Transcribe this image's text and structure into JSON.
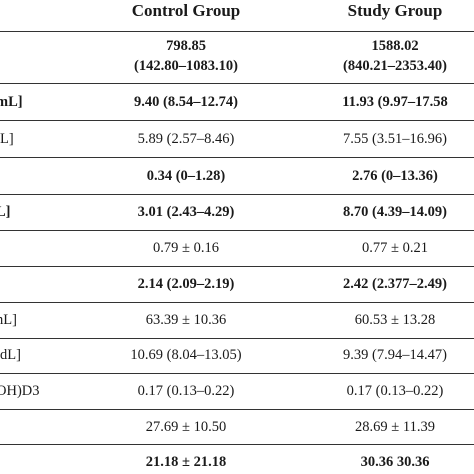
{
  "table": {
    "columns": [
      "Control Group",
      "Study Group"
    ],
    "rows": [
      {
        "label": "",
        "control": "798.85\n(142.80–1083.10)",
        "study": "1588.02\n(840.21–2353.40)",
        "bold": true
      },
      {
        "label": "mL]",
        "control": "9.40 (8.54–12.74)",
        "study": "11.93 (9.97–17.58",
        "bold": true
      },
      {
        "label": "/L]",
        "control": "5.89 (2.57–8.46)",
        "study": "7.55 (3.51–16.96)",
        "bold": false
      },
      {
        "label": "]",
        "control": "0.34 (0–1.28)",
        "study": "2.76 (0–13.36)",
        "bold": true
      },
      {
        "label": "L]",
        "control": "3.01 (2.43–4.29)",
        "study": "8.70 (4.39–14.09)",
        "bold": true
      },
      {
        "label": "",
        "control": "0.79 ± 0.16",
        "study": "0.77 ± 0.21",
        "bold": false
      },
      {
        "label": "",
        "control": "2.14 (2.09–2.19)",
        "study": "2.42 (2.377–2.49)",
        "bold": true
      },
      {
        "label": "nL]",
        "control": "63.39 ± 10.36",
        "study": "60.53 ± 13.28",
        "bold": false
      },
      {
        "label": "/dL]",
        "control": "10.69 (8.04–13.05)",
        "study": "9.39 (7.94–14.47)",
        "bold": false
      },
      {
        "label": "OH)D3",
        "control": "0.17 (0.13–0.22)",
        "study": "0.17 (0.13–0.22)",
        "bold": false
      },
      {
        "label": "]",
        "control": "27.69 ± 10.50",
        "study": "28.69 ± 11.39",
        "bold": false
      },
      {
        "label": "",
        "control": "21.18 ± 21.18",
        "study": "30.36 30.36",
        "bold": true
      }
    ]
  }
}
